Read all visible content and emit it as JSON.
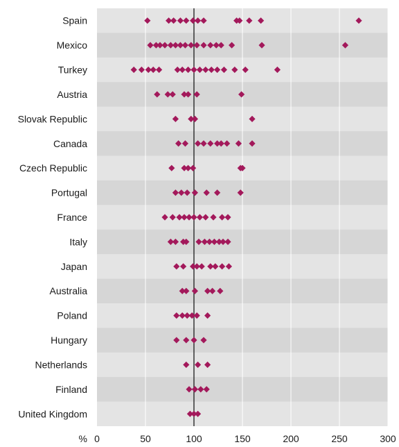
{
  "chart_data": {
    "type": "scatter",
    "title": "",
    "xlabel": "%",
    "ylabel": "",
    "xlim": [
      0,
      300
    ],
    "x_ticks": [
      0,
      50,
      100,
      150,
      200,
      250,
      300
    ],
    "reference_line": 100,
    "grid": "vertical",
    "marker_color": "#a3195b",
    "band_color": "#e4e4e4",
    "background_color": "#d6d6d6",
    "categories": [
      "Spain",
      "Mexico",
      "Turkey",
      "Austria",
      "Slovak Republic",
      "Canada",
      "Czech Republic",
      "Portugal",
      "France",
      "Italy",
      "Japan",
      "Australia",
      "Poland",
      "Hungary",
      "Netherlands",
      "Finland",
      "United Kingdom"
    ],
    "values": [
      [
        52,
        74,
        79,
        86,
        92,
        99,
        104,
        110,
        144,
        147,
        157,
        169,
        270
      ],
      [
        55,
        61,
        65,
        70,
        76,
        81,
        86,
        91,
        97,
        103,
        110,
        117,
        123,
        128,
        139,
        170,
        256
      ],
      [
        38,
        46,
        53,
        58,
        64,
        83,
        88,
        94,
        100,
        106,
        112,
        118,
        124,
        131,
        142,
        153,
        186
      ],
      [
        62,
        73,
        78,
        90,
        94,
        103,
        149
      ],
      [
        81,
        97,
        101,
        160
      ],
      [
        84,
        91,
        104,
        110,
        117,
        124,
        128,
        134,
        146,
        160
      ],
      [
        77,
        90,
        94,
        99,
        148,
        150
      ],
      [
        81,
        87,
        93,
        101,
        113,
        124,
        148
      ],
      [
        70,
        78,
        85,
        90,
        95,
        100,
        106,
        112,
        120,
        129,
        135
      ],
      [
        76,
        81,
        89,
        92,
        105,
        111,
        116,
        121,
        126,
        130,
        135
      ],
      [
        82,
        89,
        99,
        103,
        108,
        117,
        122,
        129,
        136
      ],
      [
        88,
        92,
        101,
        114,
        119,
        127
      ],
      [
        82,
        88,
        93,
        98,
        103,
        114
      ],
      [
        82,
        92,
        100,
        110
      ],
      [
        92,
        104,
        114
      ],
      [
        95,
        101,
        107,
        113
      ],
      [
        96,
        100,
        104
      ]
    ]
  }
}
